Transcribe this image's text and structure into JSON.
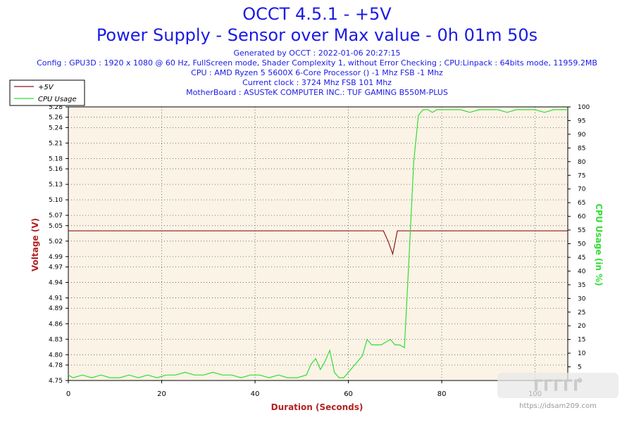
{
  "header": {
    "title": "OCCT 4.5.1 - +5V",
    "subtitle": "Power Supply - Sensor over Max value - 0h 01m 50s",
    "generated": "Generated by OCCT : 2022-01-06 20:27:15",
    "config": "Config : GPU3D : 1920 x 1080 @ 60 Hz, FullScreen mode, Shader Complexity 1, without Error Checking ; CPU:Linpack : 64bits mode, 11959.2MB",
    "cpu": "CPU : AMD Ryzen 5 5600X 6-Core Processor () -1 Mhz FSB -1 Mhz",
    "clock": "Current clock : 3724 Mhz FSB 101 Mhz",
    "motherboard": "MotherBoard : ASUSTeK COMPUTER INC.: TUF GAMING B550M-PLUS"
  },
  "watermark": "https://idsam209.com",
  "colors": {
    "title": "#1a1ae6",
    "voltage": "#8b1a1a",
    "cpu": "#33dd33",
    "plot_bg": "#fbf3e6",
    "axis_title": "#b22222"
  },
  "chart_data": {
    "type": "line",
    "xlabel": "Duration (Seconds)",
    "ylabel": "Voltage (V)",
    "y2label": "CPU Usage (in %)",
    "xlim": [
      0,
      107
    ],
    "ylim": [
      4.75,
      5.28
    ],
    "y2lim": [
      0,
      100
    ],
    "grid": true,
    "legend_position": "top-left",
    "x_ticks": [
      0,
      20,
      40,
      60,
      80,
      100
    ],
    "y_ticks": [
      4.75,
      4.78,
      4.8,
      4.83,
      4.86,
      4.89,
      4.91,
      4.94,
      4.97,
      4.99,
      5.02,
      5.05,
      5.07,
      5.1,
      5.13,
      5.16,
      5.18,
      5.21,
      5.24,
      5.26,
      5.28
    ],
    "y2_ticks": [
      0,
      5,
      10,
      15,
      20,
      25,
      30,
      35,
      40,
      45,
      50,
      55,
      60,
      65,
      70,
      75,
      80,
      85,
      90,
      95,
      100
    ],
    "series": [
      {
        "name": "+5V",
        "axis": "left",
        "x": [
          0,
          67.5,
          68.5,
          69.5,
          70.5,
          107
        ],
        "y": [
          5.04,
          5.04,
          5.02,
          4.995,
          5.04,
          5.04
        ]
      },
      {
        "name": "CPU Usage",
        "axis": "right",
        "x": [
          0,
          1,
          3,
          5,
          7,
          9,
          11,
          13,
          15,
          17,
          19,
          21,
          23,
          25,
          27,
          29,
          31,
          33,
          35,
          37,
          39,
          41,
          43,
          45,
          47,
          49,
          51,
          52,
          53,
          54,
          55,
          56,
          57,
          58,
          59,
          60,
          61,
          62,
          63,
          64,
          65,
          66,
          67,
          68,
          69,
          70,
          71,
          72,
          73,
          74,
          75,
          76,
          77,
          78,
          79,
          80,
          82,
          84,
          86,
          88,
          90,
          92,
          94,
          96,
          98,
          100,
          102,
          104,
          106,
          107
        ],
        "y": [
          2,
          1,
          2,
          1,
          2,
          1,
          1,
          2,
          1,
          2,
          1,
          2,
          2,
          3,
          2,
          2,
          3,
          2,
          2,
          1,
          2,
          2,
          1,
          2,
          1,
          1,
          2,
          6,
          8,
          4,
          7,
          11,
          3,
          1,
          1,
          3,
          5,
          7,
          9,
          15,
          13,
          13,
          13,
          14,
          15,
          13,
          13,
          12,
          45,
          80,
          97,
          99,
          99,
          98,
          99,
          99,
          99,
          99,
          98,
          99,
          99,
          99,
          98,
          99,
          99,
          99,
          98,
          99,
          99,
          99
        ]
      }
    ]
  }
}
